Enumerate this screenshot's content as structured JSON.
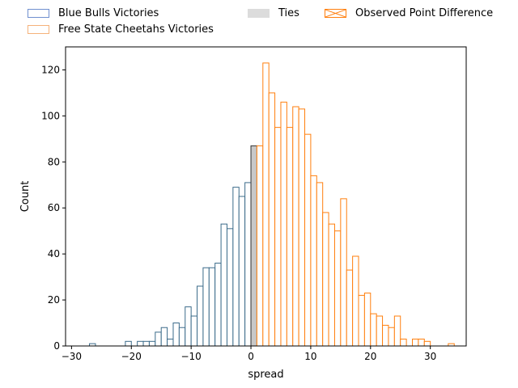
{
  "chart_data": {
    "type": "bar",
    "histogram": true,
    "xlabel": "spread",
    "ylabel": "Count",
    "xlim": [
      -31,
      36
    ],
    "ylim": [
      0,
      130
    ],
    "xticks": [
      -30,
      -20,
      -10,
      0,
      10,
      20,
      30
    ],
    "yticks": [
      0,
      20,
      40,
      60,
      80,
      100,
      120
    ],
    "grid": false,
    "legend_placement": "top, outside plot",
    "legend": [
      {
        "label": "Blue Bulls Victories",
        "style": "outline",
        "color": "#6f8fcf"
      },
      {
        "label": "Free State Cheetahs Victories",
        "style": "outline",
        "color": "#f5b27a"
      },
      {
        "label": "Ties",
        "style": "filled",
        "color": "#dcdcdc"
      },
      {
        "label": "Observed Point Difference",
        "style": "hatched",
        "color": "#ff7f0e"
      }
    ],
    "series": [
      {
        "name": "Blue Bulls Victories",
        "edge_color": "#3b6b8a",
        "fill_color": "#ffffff",
        "x": [
          -27,
          -21,
          -19,
          -18,
          -17,
          -16,
          -15,
          -14,
          -13,
          -12,
          -11,
          -10,
          -9,
          -8,
          -7,
          -6,
          -5,
          -4,
          -3,
          -2,
          -1
        ],
        "values": [
          1,
          2,
          2,
          2,
          2,
          6,
          8,
          3,
          10,
          8,
          17,
          13,
          26,
          34,
          34,
          36,
          53,
          51,
          69,
          65,
          71
        ]
      },
      {
        "name": "Ties",
        "edge_color": "#333333",
        "fill_color": "#c8c8c8",
        "x": [
          0
        ],
        "values": [
          87
        ]
      },
      {
        "name": "Free State Cheetahs Victories",
        "edge_color": "#ff7f0e",
        "fill_color": "#ffffff",
        "x": [
          1,
          2,
          3,
          4,
          5,
          6,
          7,
          8,
          9,
          10,
          11,
          12,
          13,
          14,
          15,
          16,
          17,
          18,
          19,
          20,
          21,
          22,
          23,
          24,
          25,
          27,
          28,
          29,
          33
        ],
        "values": [
          87,
          123,
          110,
          95,
          106,
          95,
          104,
          103,
          92,
          74,
          71,
          58,
          53,
          50,
          64,
          33,
          39,
          22,
          23,
          14,
          13,
          9,
          8,
          13,
          3,
          3,
          3,
          2,
          1
        ]
      }
    ]
  }
}
